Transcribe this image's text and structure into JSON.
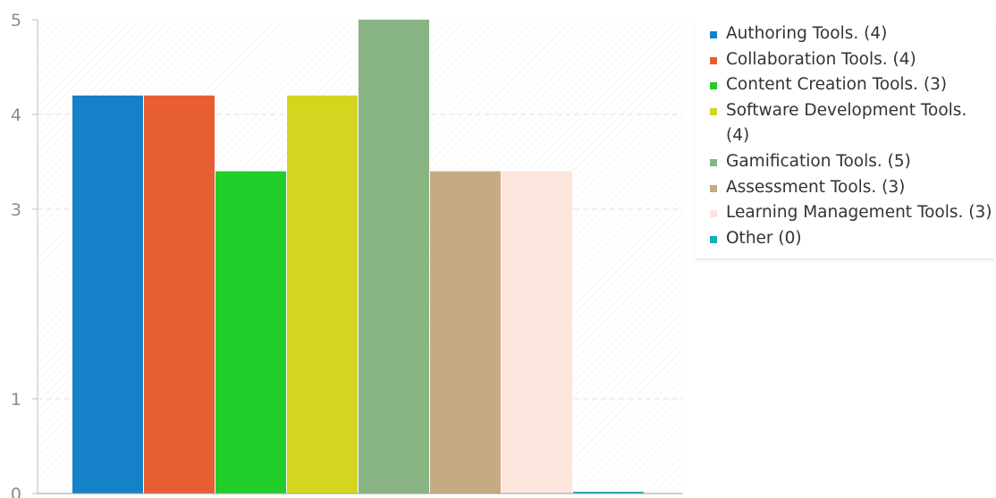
{
  "chart_data": {
    "type": "bar",
    "categories": [
      "Authoring Tools.",
      "Collaboration Tools.",
      "Content Creation Tools.",
      "Software Development Tools.",
      "Gamification Tools.",
      "Assessment Tools.",
      "Learning Management Tools.",
      "Other"
    ],
    "values": [
      4.2,
      4.2,
      3.4,
      4.2,
      5,
      3.4,
      3.4,
      0
    ],
    "legend_labels": [
      "Authoring Tools. (4)",
      "Collaboration Tools. (4)",
      "Content Creation Tools. (3)",
      "Software Development Tools. (4)",
      "Gamification Tools. (5)",
      "Assessment Tools. (3)",
      "Learning Management Tools. (3)",
      "Other (0)"
    ],
    "colors": [
      "#1581c9",
      "#e75e32",
      "#21cd28",
      "#d5d51f",
      "#88b383",
      "#c6aa83",
      "#fbe5dd",
      "#18a9b6"
    ],
    "ylim": [
      0,
      5
    ],
    "yticks": [
      "0",
      "1",
      "3",
      "4",
      "5"
    ],
    "grid": true,
    "legend_position": "right",
    "title": "",
    "xlabel": "",
    "ylabel": ""
  }
}
